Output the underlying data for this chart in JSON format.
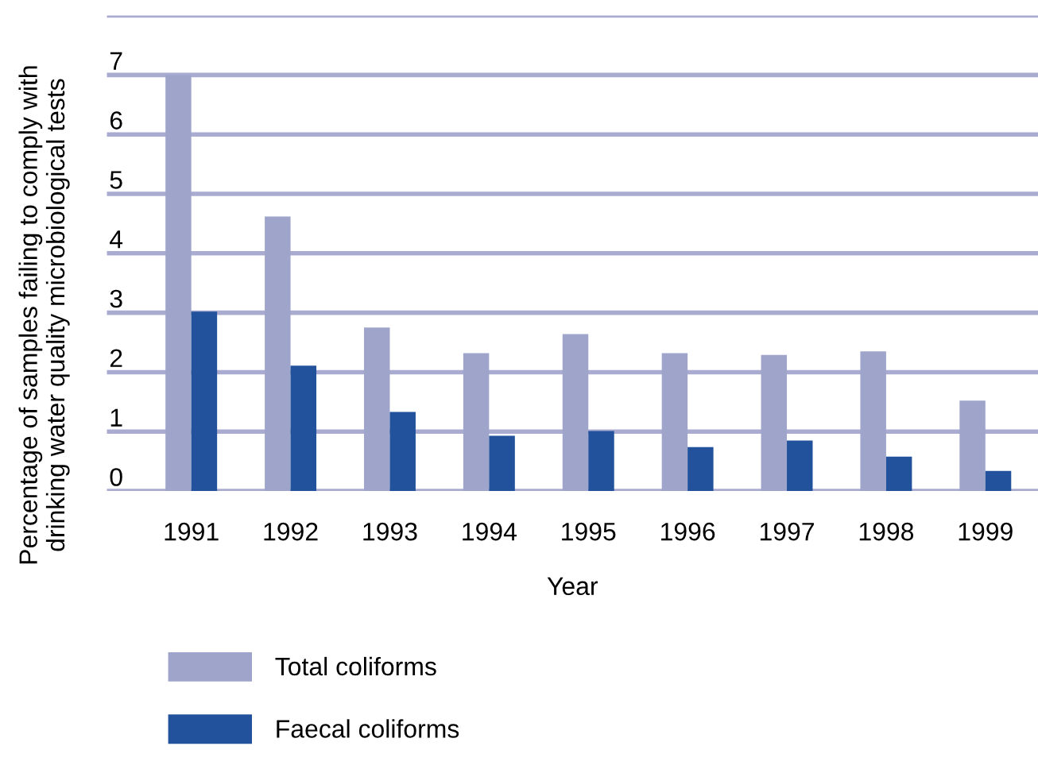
{
  "chart_data": {
    "type": "bar",
    "xlabel": "Year",
    "ylabel": "Percentage of samples failing to comply with\ndrinking water quality microbiological tests",
    "categories": [
      "1991",
      "1992",
      "1993",
      "1994",
      "1995",
      "1996",
      "1997",
      "1998",
      "1999"
    ],
    "series": [
      {
        "name": "Total coliforms",
        "color": "#9fa4cb",
        "values": [
          7.0,
          4.62,
          2.75,
          2.32,
          2.64,
          2.32,
          2.29,
          2.35,
          1.52
        ]
      },
      {
        "name": "Faecal coliforms",
        "color": "#22529b",
        "values": [
          3.02,
          2.11,
          1.33,
          0.93,
          1.01,
          0.74,
          0.85,
          0.58,
          0.34
        ]
      }
    ],
    "ylim": [
      0,
      8
    ],
    "yticks": [
      0,
      1,
      2,
      3,
      4,
      5,
      6,
      7,
      {
        "value": 8,
        "label": null
      }
    ],
    "grid": "y",
    "legend": "bottom"
  }
}
